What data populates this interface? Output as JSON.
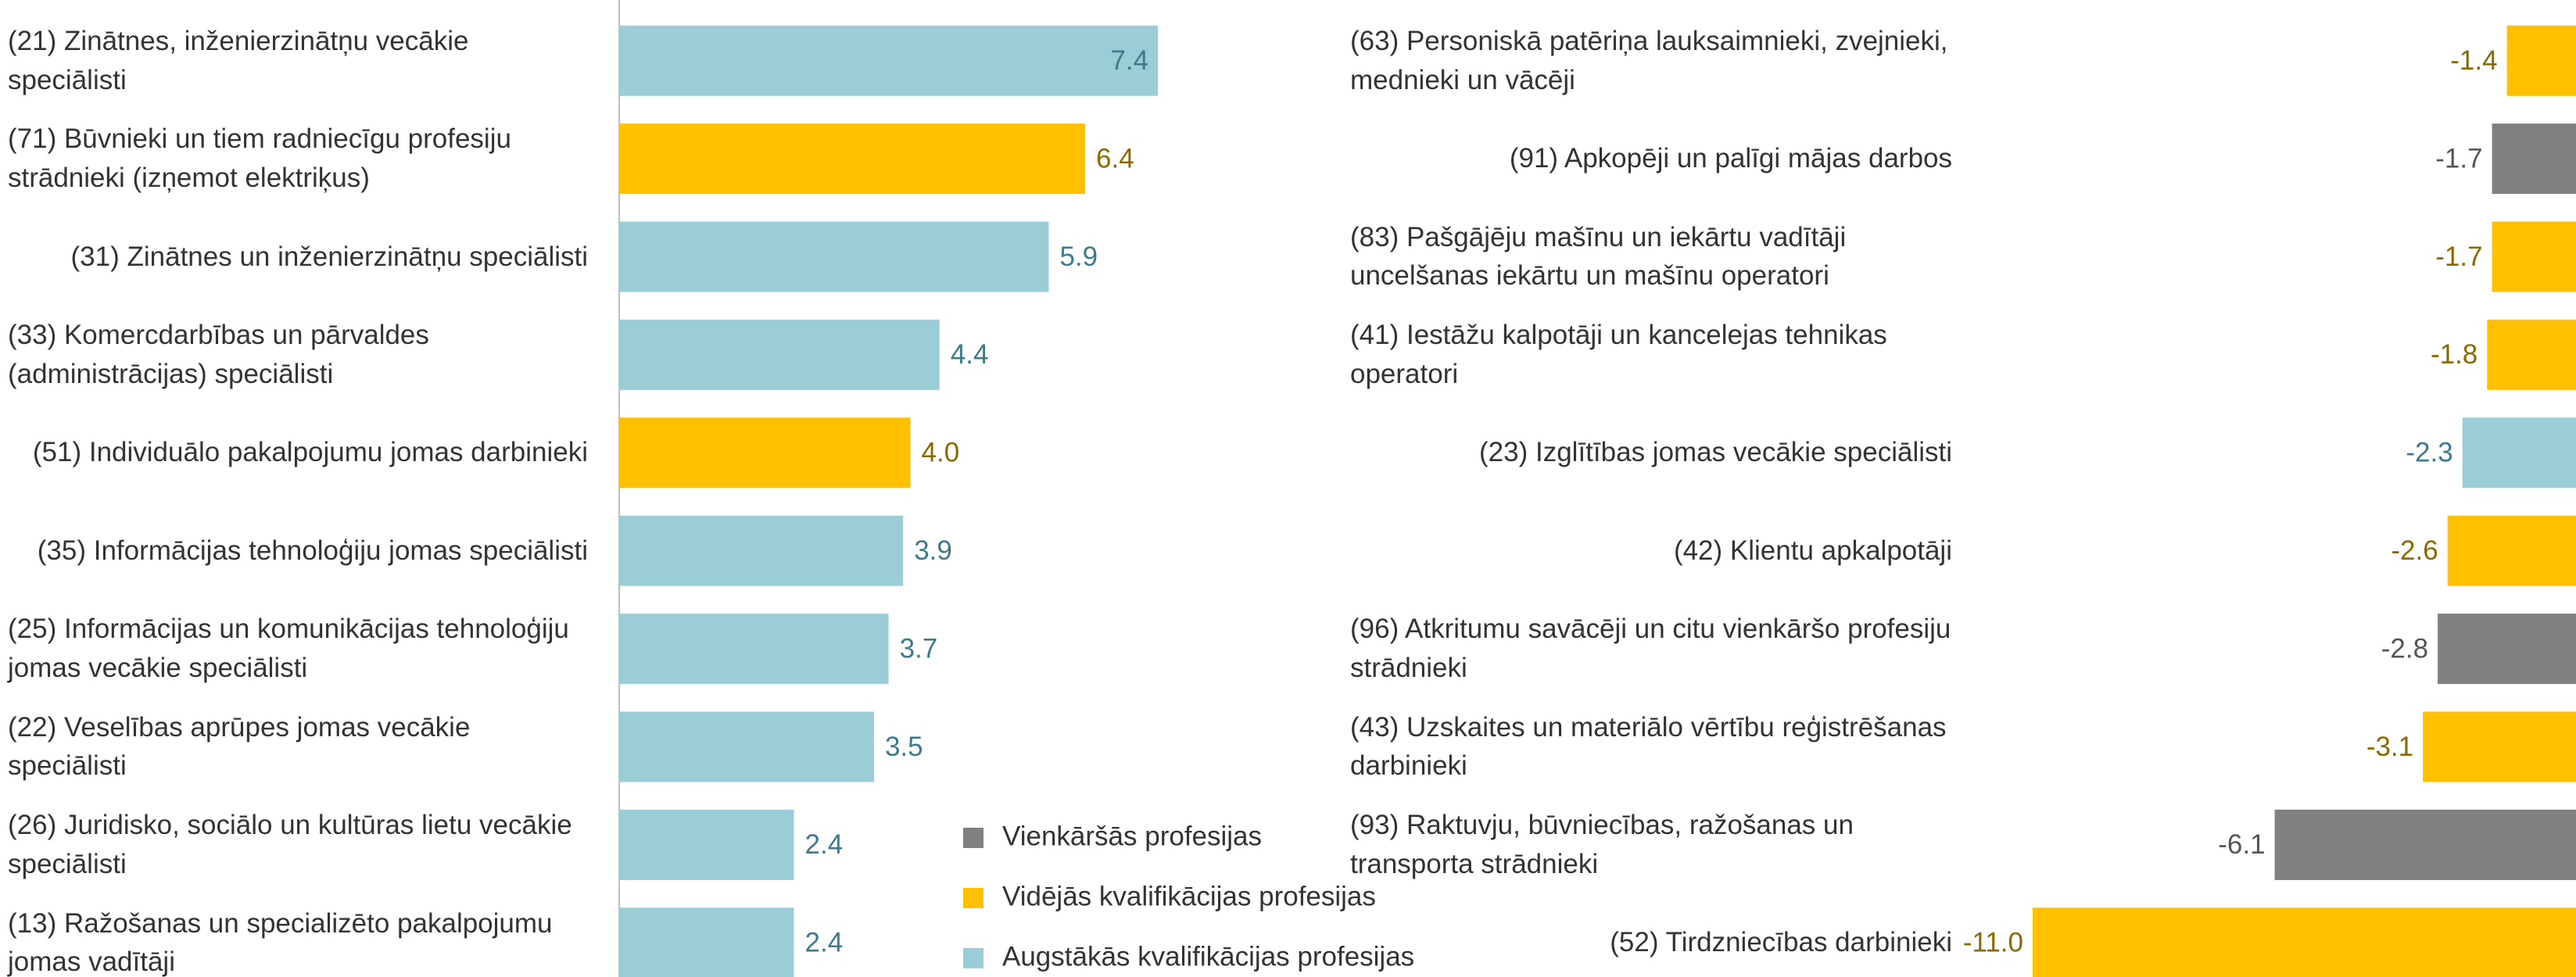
{
  "chart_data": [
    {
      "type": "barh",
      "categories": [
        "(21) Zinātnes, inženierzinātņu vecākie speciālisti",
        "(71) Būvnieki un tiem radniecīgu profesiju strādnieki (izņemot elektriķus)",
        "(31) Zinātnes un inženierzinātņu speciālisti",
        "(33) Komercdarbības un pārvaldes (administrācijas) speciālisti",
        "(51) Individuālo pakalpojumu jomas darbinieki",
        "(35) Informācijas tehnoloģiju jomas speciālisti",
        "(25) Informācijas un komunikācijas tehnoloģiju jomas vecākie speciālisti",
        "(22) Veselības aprūpes jomas vecākie speciālisti",
        "(26) Juridisko, sociālo un kultūras lietu vecākie speciālisti",
        "(13) Ražošanas un specializēto pakalpojumu jomas vadītāji"
      ],
      "values": [
        7.4,
        6.4,
        5.9,
        4.4,
        4.0,
        3.9,
        3.7,
        3.5,
        2.4,
        2.4
      ],
      "value_labels": [
        "7.4",
        "6.4",
        "5.9",
        "4.4",
        "4.0",
        "3.9",
        "3.7",
        "3.5",
        "2.4",
        "2.4"
      ],
      "colors": [
        "#9bcdd7",
        "#ffc000",
        "#9bcdd7",
        "#9bcdd7",
        "#ffc000",
        "#9bcdd7",
        "#9bcdd7",
        "#9bcdd7",
        "#9bcdd7",
        "#9bcdd7"
      ],
      "xlim": [
        0,
        8
      ],
      "legend": [
        {
          "name": "Vienkāršās profesijas",
          "color": "#808080"
        },
        {
          "name": "Vidējās kvalifikācijas profesijas",
          "color": "#ffc000"
        },
        {
          "name": "Augstākās kvalifikācijas profesijas",
          "color": "#9bcdd7"
        }
      ]
    },
    {
      "type": "barh",
      "categories": [
        "(63) Personiskā patēriņa lauksaimnieki, zvejnieki, mednieki un vācēji",
        "(91) Apkopēji un palīgi mājas darbos",
        "(83) Pašgājēju mašīnu un iekārtu vadītāji uncelšanas iekārtu un mašīnu operatori",
        "(41) Iestāžu kalpotāji un kancelejas tehnikas operatori",
        "(23) Izglītības jomas vecākie speciālisti",
        "(42) Klientu apkalpotāji",
        "(96) Atkritumu savācēji un citu vienkāršo profesiju strādnieki",
        "(43) Uzskaites un materiālo vērtību reģistrēšanas darbinieki",
        "(93) Raktuvju, būvniecības, ražošanas un transporta strādnieki",
        "(52) Tirdzniecības darbinieki"
      ],
      "values": [
        -1.4,
        -1.7,
        -1.7,
        -1.8,
        -2.3,
        -2.6,
        -2.8,
        -3.1,
        -6.1,
        -11.0
      ],
      "value_labels": [
        "-1.4",
        "-1.7",
        "-1.7",
        "-1.8",
        "-2.3",
        "-2.6",
        "-2.8",
        "-3.1",
        "-6.1",
        "-11.0"
      ],
      "colors": [
        "#ffc000",
        "#808080",
        "#ffc000",
        "#ffc000",
        "#9bcdd7",
        "#ffc000",
        "#808080",
        "#ffc000",
        "#808080",
        "#ffc000"
      ],
      "xlim": [
        -11,
        0
      ]
    }
  ]
}
